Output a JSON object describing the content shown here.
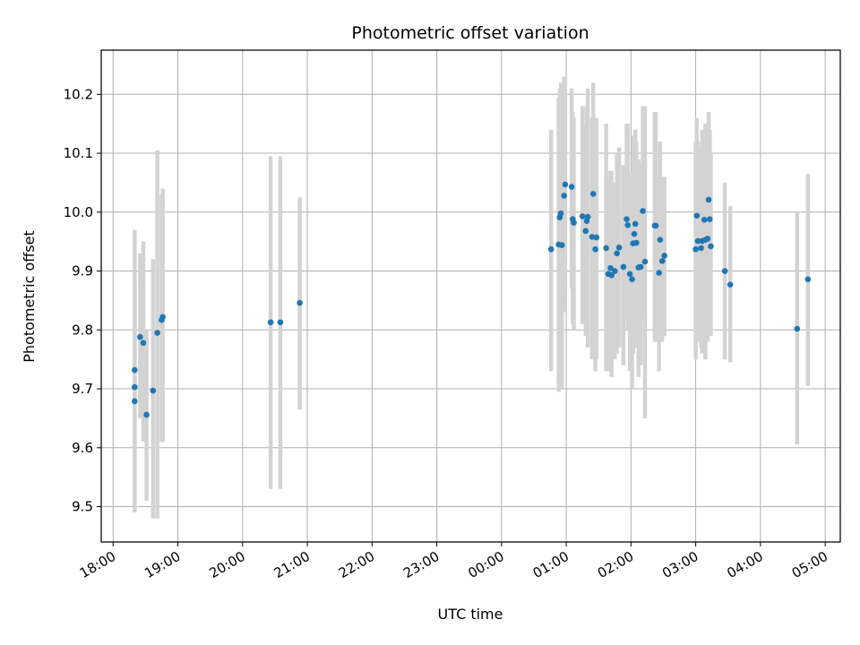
{
  "chart_data": {
    "type": "scatter",
    "title": "Photometric offset variation",
    "xlabel": "UTC time",
    "ylabel": "Photometric offset",
    "x_ticks": [
      "18:00",
      "19:00",
      "20:00",
      "21:00",
      "22:00",
      "23:00",
      "00:00",
      "01:00",
      "02:00",
      "03:00",
      "04:00",
      "05:00"
    ],
    "y_ticks": [
      "9.5",
      "9.6",
      "9.7",
      "9.8",
      "9.9",
      "10.0",
      "10.1",
      "10.2"
    ],
    "xlim": [
      "17:49",
      "05:14"
    ],
    "ylim": [
      9.44,
      10.275
    ],
    "grid": true,
    "legend": "none",
    "colors": {
      "point": "#1f77b4",
      "errorbar": "#d3d3d3",
      "grid": "#b0b0b0"
    },
    "points": [
      {
        "t": "18:20",
        "y": 9.732,
        "lo": 9.49,
        "hi": 9.97
      },
      {
        "t": "18:20",
        "y": 9.703,
        "lo": 9.52,
        "hi": 9.9
      },
      {
        "t": "18:20",
        "y": 9.679,
        "lo": 9.5,
        "hi": 9.88
      },
      {
        "t": "18:25",
        "y": 9.788,
        "lo": 9.65,
        "hi": 9.93
      },
      {
        "t": "18:28",
        "y": 9.778,
        "lo": 9.61,
        "hi": 9.95
      },
      {
        "t": "18:31",
        "y": 9.656,
        "lo": 9.51,
        "hi": 9.8
      },
      {
        "t": "18:37",
        "y": 9.697,
        "lo": 9.48,
        "hi": 9.92
      },
      {
        "t": "18:41",
        "y": 9.795,
        "lo": 9.48,
        "hi": 10.105
      },
      {
        "t": "18:45",
        "y": 9.817,
        "lo": 9.61,
        "hi": 10.03
      },
      {
        "t": "18:46",
        "y": 9.822,
        "lo": 9.61,
        "hi": 10.04
      },
      {
        "t": "20:26",
        "y": 9.813,
        "lo": 9.53,
        "hi": 10.095
      },
      {
        "t": "20:35",
        "y": 9.813,
        "lo": 9.53,
        "hi": 10.095
      },
      {
        "t": "20:53",
        "y": 9.846,
        "lo": 9.665,
        "hi": 10.025
      },
      {
        "t": "00:46",
        "y": 9.937,
        "lo": 9.73,
        "hi": 10.14
      },
      {
        "t": "00:53",
        "y": 9.945,
        "lo": 9.695,
        "hi": 10.195
      },
      {
        "t": "00:54",
        "y": 9.991,
        "lo": 9.77,
        "hi": 10.21
      },
      {
        "t": "00:55",
        "y": 9.998,
        "lo": 9.79,
        "hi": 10.22
      },
      {
        "t": "00:56",
        "y": 9.944,
        "lo": 9.7,
        "hi": 10.19
      },
      {
        "t": "00:58",
        "y": 10.028,
        "lo": 9.83,
        "hi": 10.23
      },
      {
        "t": "00:59",
        "y": 10.047,
        "lo": 9.86,
        "hi": 10.23
      },
      {
        "t": "01:05",
        "y": 10.043,
        "lo": 9.87,
        "hi": 10.21
      },
      {
        "t": "01:06",
        "y": 9.988,
        "lo": 9.81,
        "hi": 10.17
      },
      {
        "t": "01:07",
        "y": 9.982,
        "lo": 9.8,
        "hi": 10.16
      },
      {
        "t": "01:15",
        "y": 9.993,
        "lo": 9.81,
        "hi": 10.18
      },
      {
        "t": "01:18",
        "y": 9.968,
        "lo": 9.79,
        "hi": 10.15
      },
      {
        "t": "01:19",
        "y": 9.985,
        "lo": 9.79,
        "hi": 10.18
      },
      {
        "t": "01:20",
        "y": 9.992,
        "lo": 9.77,
        "hi": 10.21
      },
      {
        "t": "01:24",
        "y": 9.958,
        "lo": 9.75,
        "hi": 10.16
      },
      {
        "t": "01:25",
        "y": 10.031,
        "lo": 9.84,
        "hi": 10.22
      },
      {
        "t": "01:27",
        "y": 9.937,
        "lo": 9.73,
        "hi": 10.15
      },
      {
        "t": "01:28",
        "y": 9.957,
        "lo": 9.75,
        "hi": 10.16
      },
      {
        "t": "01:37",
        "y": 9.939,
        "lo": 9.73,
        "hi": 10.15
      },
      {
        "t": "01:39",
        "y": 9.895,
        "lo": 9.73,
        "hi": 10.06
      },
      {
        "t": "01:41",
        "y": 9.905,
        "lo": 9.74,
        "hi": 10.07
      },
      {
        "t": "01:42",
        "y": 9.893,
        "lo": 9.72,
        "hi": 10.07
      },
      {
        "t": "01:45",
        "y": 9.9,
        "lo": 9.75,
        "hi": 10.05
      },
      {
        "t": "01:47",
        "y": 9.93,
        "lo": 9.76,
        "hi": 10.1
      },
      {
        "t": "01:49",
        "y": 9.94,
        "lo": 9.77,
        "hi": 10.11
      },
      {
        "t": "01:53",
        "y": 9.907,
        "lo": 9.74,
        "hi": 10.08
      },
      {
        "t": "01:56",
        "y": 9.988,
        "lo": 9.82,
        "hi": 10.15
      },
      {
        "t": "01:57",
        "y": 9.978,
        "lo": 9.8,
        "hi": 10.15
      },
      {
        "t": "01:59",
        "y": 9.895,
        "lo": 9.73,
        "hi": 10.06
      },
      {
        "t": "02:01",
        "y": 9.886,
        "lo": 9.7,
        "hi": 10.07
      },
      {
        "t": "02:02",
        "y": 9.947,
        "lo": 9.76,
        "hi": 10.13
      },
      {
        "t": "02:03",
        "y": 9.963,
        "lo": 9.79,
        "hi": 10.13
      },
      {
        "t": "02:04",
        "y": 9.98,
        "lo": 9.82,
        "hi": 10.14
      },
      {
        "t": "02:05",
        "y": 9.948,
        "lo": 9.77,
        "hi": 10.12
      },
      {
        "t": "02:07",
        "y": 9.906,
        "lo": 9.72,
        "hi": 10.09
      },
      {
        "t": "02:09",
        "y": 9.907,
        "lo": 9.74,
        "hi": 10.08
      },
      {
        "t": "02:11",
        "y": 10.002,
        "lo": 9.82,
        "hi": 10.18
      },
      {
        "t": "02:13",
        "y": 9.916,
        "lo": 9.65,
        "hi": 10.18
      },
      {
        "t": "02:22",
        "y": 9.977,
        "lo": 9.78,
        "hi": 10.17
      },
      {
        "t": "02:23",
        "y": 9.977,
        "lo": 9.78,
        "hi": 10.17
      },
      {
        "t": "02:26",
        "y": 9.897,
        "lo": 9.73,
        "hi": 10.06
      },
      {
        "t": "02:27",
        "y": 9.953,
        "lo": 9.78,
        "hi": 10.12
      },
      {
        "t": "02:29",
        "y": 9.917,
        "lo": 9.78,
        "hi": 10.06
      },
      {
        "t": "02:31",
        "y": 9.926,
        "lo": 9.79,
        "hi": 10.06
      },
      {
        "t": "03:00",
        "y": 9.937,
        "lo": 9.75,
        "hi": 10.12
      },
      {
        "t": "03:01",
        "y": 9.994,
        "lo": 9.82,
        "hi": 10.16
      },
      {
        "t": "03:02",
        "y": 9.951,
        "lo": 9.78,
        "hi": 10.12
      },
      {
        "t": "03:05",
        "y": 9.939,
        "lo": 9.77,
        "hi": 10.11
      },
      {
        "t": "03:06",
        "y": 9.951,
        "lo": 9.76,
        "hi": 10.14
      },
      {
        "t": "03:08",
        "y": 9.987,
        "lo": 9.84,
        "hi": 10.14
      },
      {
        "t": "03:09",
        "y": 9.953,
        "lo": 9.75,
        "hi": 10.15
      },
      {
        "t": "03:11",
        "y": 9.955,
        "lo": 9.78,
        "hi": 10.13
      },
      {
        "t": "03:12",
        "y": 10.021,
        "lo": 9.87,
        "hi": 10.17
      },
      {
        "t": "03:13",
        "y": 9.988,
        "lo": 9.84,
        "hi": 10.14
      },
      {
        "t": "03:14",
        "y": 9.942,
        "lo": 9.79,
        "hi": 10.1
      },
      {
        "t": "03:27",
        "y": 9.9,
        "lo": 9.75,
        "hi": 10.05
      },
      {
        "t": "03:32",
        "y": 9.877,
        "lo": 9.745,
        "hi": 10.01
      },
      {
        "t": "04:34",
        "y": 9.802,
        "lo": 9.605,
        "hi": 10.0
      },
      {
        "t": "04:44",
        "y": 9.886,
        "lo": 9.705,
        "hi": 10.065
      }
    ]
  }
}
